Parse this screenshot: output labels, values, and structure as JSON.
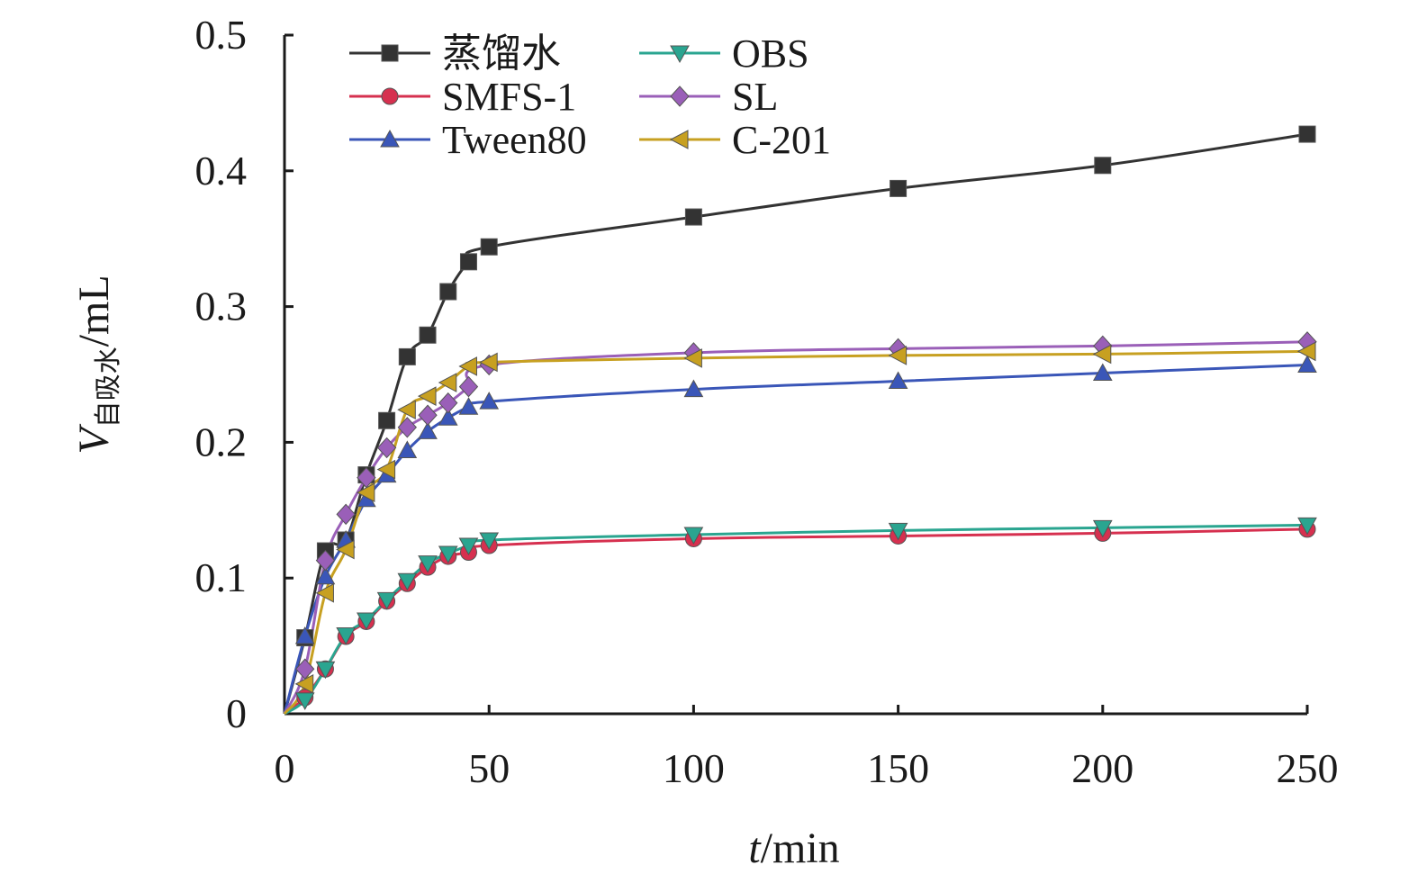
{
  "chart_data": {
    "type": "line",
    "title": "",
    "xlabel": {
      "var": "t",
      "unit": "/min"
    },
    "ylabel": {
      "var": "V",
      "sub": "自吸水",
      "unit": "/mL"
    },
    "xlim": [
      0,
      250
    ],
    "ylim": [
      0,
      0.5
    ],
    "xticks": [
      0,
      50,
      100,
      150,
      200,
      250
    ],
    "yticks": [
      0,
      0.1,
      0.2,
      0.3,
      0.4,
      0.5
    ],
    "xtick_labels": [
      "0",
      "50",
      "100",
      "150",
      "200",
      "250"
    ],
    "ytick_labels": [
      "0",
      "0.1",
      "0.2",
      "0.3",
      "0.4",
      "0.5"
    ],
    "grid": false,
    "legend_position": "top-left",
    "series": [
      {
        "name": "蒸馏水",
        "color": "#333333",
        "marker": "square",
        "x": [
          0,
          5,
          10,
          15,
          20,
          25,
          30,
          35,
          40,
          45,
          50,
          100,
          150,
          200,
          250
        ],
        "y": [
          0,
          0.056,
          0.12,
          0.128,
          0.176,
          0.216,
          0.263,
          0.279,
          0.311,
          0.333,
          0.344,
          0.366,
          0.387,
          0.404,
          0.427
        ]
      },
      {
        "name": "SMFS-1",
        "color": "#d6304f",
        "marker": "circle",
        "x": [
          0,
          5,
          10,
          15,
          20,
          25,
          30,
          35,
          40,
          45,
          50,
          100,
          150,
          200,
          250
        ],
        "y": [
          0,
          0.012,
          0.033,
          0.057,
          0.068,
          0.083,
          0.096,
          0.108,
          0.116,
          0.119,
          0.124,
          0.129,
          0.131,
          0.133,
          0.136
        ]
      },
      {
        "name": "Tween80",
        "color": "#3a56b8",
        "marker": "triangle-up",
        "x": [
          0,
          5,
          10,
          15,
          20,
          25,
          30,
          35,
          40,
          45,
          50,
          100,
          150,
          200,
          250
        ],
        "y": [
          0,
          0.057,
          0.101,
          0.128,
          0.158,
          0.176,
          0.194,
          0.208,
          0.218,
          0.226,
          0.23,
          0.239,
          0.245,
          0.251,
          0.257
        ]
      },
      {
        "name": "OBS",
        "color": "#2aa590",
        "marker": "triangle-down",
        "x": [
          0,
          5,
          10,
          15,
          20,
          25,
          30,
          35,
          40,
          45,
          50,
          100,
          150,
          200,
          250
        ],
        "y": [
          0,
          0.01,
          0.033,
          0.058,
          0.069,
          0.084,
          0.098,
          0.111,
          0.118,
          0.124,
          0.128,
          0.132,
          0.135,
          0.137,
          0.139
        ]
      },
      {
        "name": "SL",
        "color": "#9a5fb8",
        "marker": "diamond",
        "x": [
          0,
          5,
          10,
          15,
          20,
          25,
          30,
          35,
          40,
          45,
          50,
          100,
          150,
          200,
          250
        ],
        "y": [
          0,
          0.033,
          0.113,
          0.147,
          0.174,
          0.196,
          0.211,
          0.22,
          0.229,
          0.241,
          0.257,
          0.266,
          0.269,
          0.271,
          0.274
        ]
      },
      {
        "name": "C-201",
        "color": "#c7a021",
        "marker": "triangle-left",
        "x": [
          0,
          5,
          10,
          15,
          20,
          25,
          30,
          35,
          40,
          45,
          50,
          100,
          150,
          200,
          250
        ],
        "y": [
          0,
          0.022,
          0.089,
          0.121,
          0.163,
          0.18,
          0.224,
          0.234,
          0.244,
          0.256,
          0.259,
          0.262,
          0.264,
          0.265,
          0.267
        ]
      }
    ]
  }
}
